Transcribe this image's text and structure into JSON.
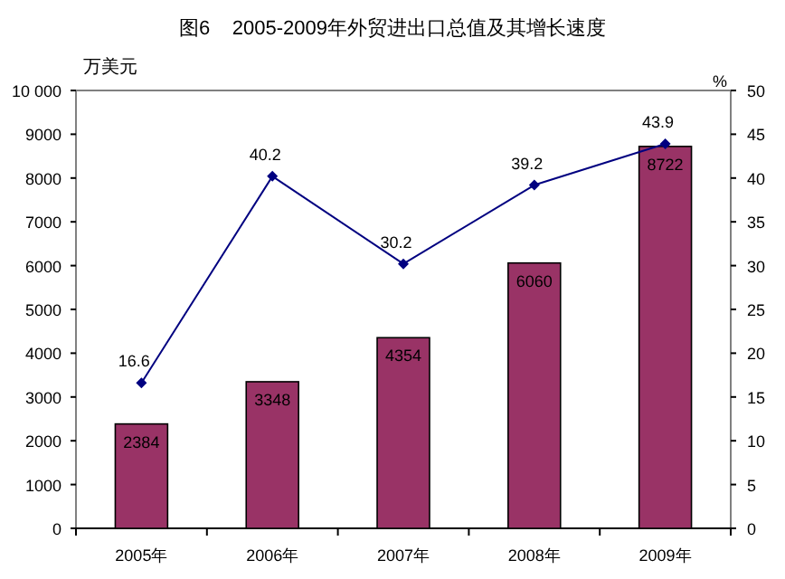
{
  "chart_data": {
    "type": "bar",
    "title": "图6    2005-2009年外贸进出口总值及其增长速度",
    "ylabel": "万美元",
    "y2label": "%",
    "categories": [
      "2005年",
      "2006年",
      "2007年",
      "2008年",
      "2009年"
    ],
    "series": [
      {
        "color": "#993366",
        "values": [
          2384,
          3348,
          4354,
          6060,
          8722
        ]
      },
      {
        "type": "line",
        "axis": "y2",
        "color": "#000080",
        "values": [
          16.6,
          40.2,
          30.2,
          39.2,
          43.9
        ]
      }
    ],
    "ylim": [
      0,
      10000
    ],
    "yticks": [
      0,
      1000,
      2000,
      3000,
      4000,
      5000,
      6000,
      7000,
      8000,
      9000,
      {
        "value": 10000,
        "label": "10 000"
      }
    ],
    "y2lim": [
      0,
      50
    ],
    "y2ticks": [
      0,
      5,
      10,
      15,
      20,
      25,
      30,
      35,
      40,
      45,
      50
    ],
    "data_labels": true,
    "marker": "diamond",
    "grid": false
  }
}
